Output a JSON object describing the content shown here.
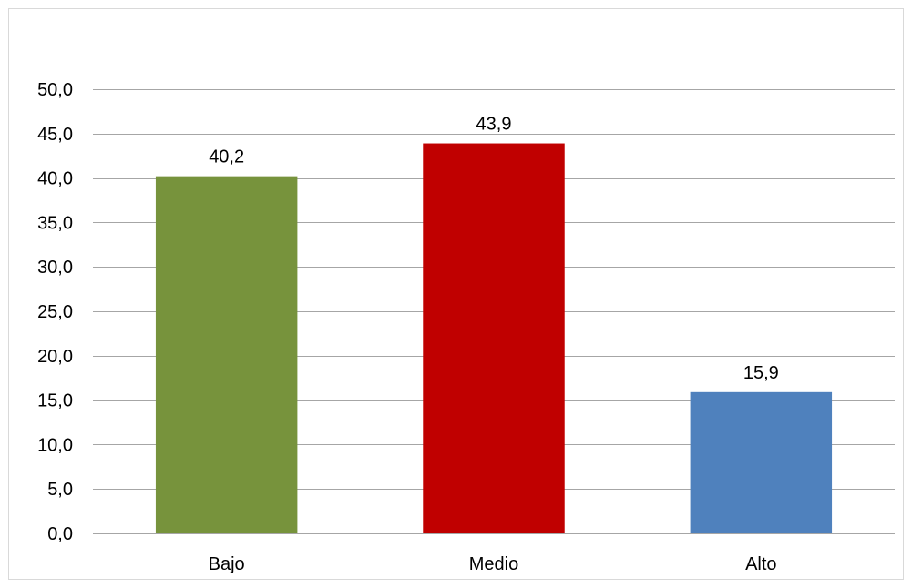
{
  "chart_data": {
    "type": "bar",
    "categories": [
      "Bajo",
      "Medio",
      "Alto"
    ],
    "values": [
      40.2,
      43.9,
      15.9
    ],
    "value_labels": [
      "40,2",
      "43,9",
      "15,9"
    ],
    "colors": [
      "#77933c",
      "#c00000",
      "#4f81bd"
    ],
    "title": "",
    "xlabel": "",
    "ylabel": "",
    "ylim": [
      0,
      50
    ],
    "ytick_values": [
      0,
      5,
      10,
      15,
      20,
      25,
      30,
      35,
      40,
      45,
      50
    ],
    "ytick_labels": [
      "0,0",
      "5,0",
      "10,0",
      "15,0",
      "20,0",
      "25,0",
      "30,0",
      "35,0",
      "40,0",
      "45,0",
      "50,0"
    ],
    "grid": true,
    "gridline_color": "#a6a6a6",
    "legend": "none"
  }
}
